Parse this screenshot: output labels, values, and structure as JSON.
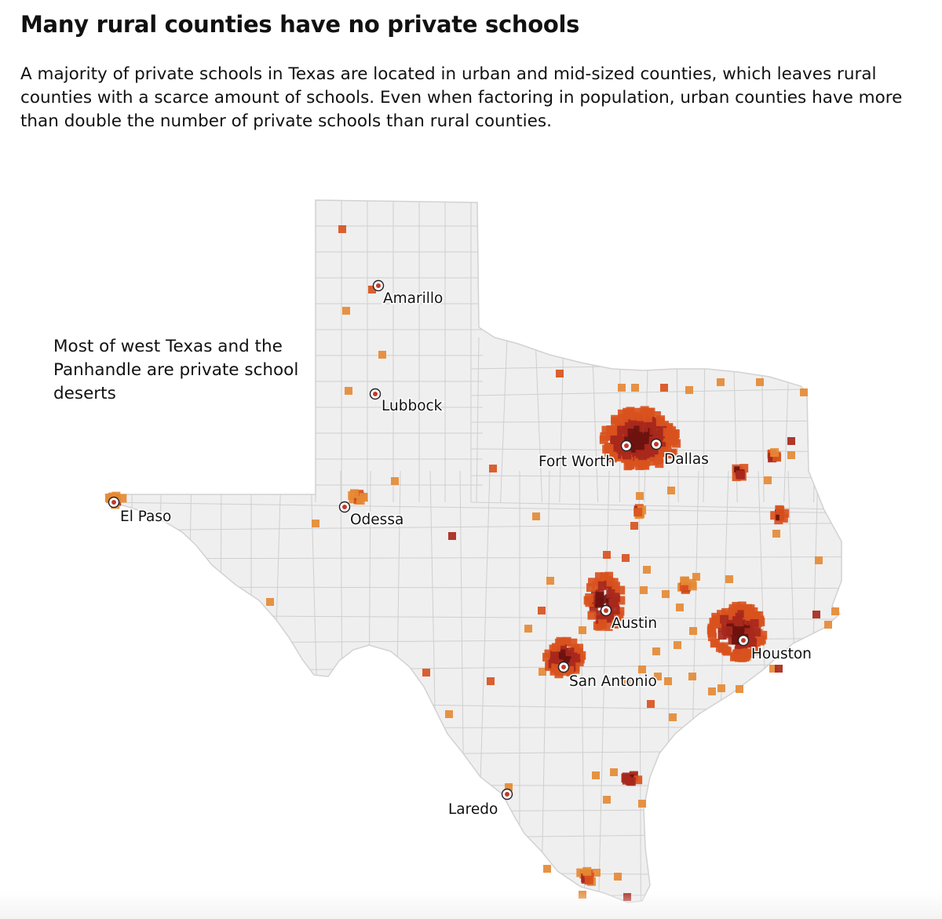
{
  "header": {
    "title": "Many rural counties have no private schools",
    "description": "A majority of private schools in Texas are located in urban and mid-sized counties, which leaves rural counties with a scarce amount of schools. Even when factoring in population, urban counties have more than double the number of private schools than rural counties."
  },
  "map": {
    "region": "Texas",
    "annotation": "Most of west Texas and the Panhandle are private school deserts",
    "colors": {
      "land": "#efefef",
      "county_border": "#cfcfcf",
      "school_light": "#e58a35",
      "school_mid": "#d9531e",
      "school_dark": "#a8281c",
      "school_darkest": "#6e120f",
      "city_marker": "#c0392b"
    },
    "cities": [
      {
        "name": "Amarillo"
      },
      {
        "name": "Lubbock"
      },
      {
        "name": "El Paso"
      },
      {
        "name": "Odessa"
      },
      {
        "name": "Fort Worth"
      },
      {
        "name": "Dallas"
      },
      {
        "name": "Austin"
      },
      {
        "name": "San Antonio"
      },
      {
        "name": "Houston"
      },
      {
        "name": "Laredo"
      }
    ]
  }
}
